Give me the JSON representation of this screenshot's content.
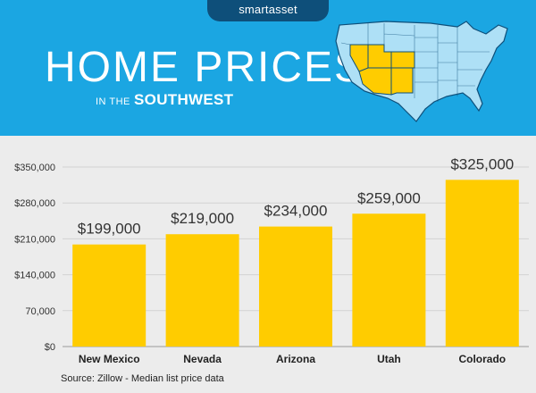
{
  "header": {
    "logo": "smartasset",
    "title": "HOME PRICES",
    "subtitle_prefix": "IN THE",
    "subtitle_emphasis": "SOUTHWEST"
  },
  "colors": {
    "header_bg": "#1ba6e2",
    "logo_tab": "#0e4f7a",
    "bar": "#ffcc00",
    "chart_bg": "#ececec",
    "map_fill": "#aee0f6",
    "map_highlight": "#ffcc00"
  },
  "map": {
    "highlighted_states": [
      "Nevada",
      "Utah",
      "Colorado",
      "Arizona",
      "New Mexico"
    ]
  },
  "chart_data": {
    "type": "bar",
    "categories": [
      "New Mexico",
      "Nevada",
      "Arizona",
      "Utah",
      "Colorado"
    ],
    "values": [
      199000,
      219000,
      234000,
      259000,
      325000
    ],
    "data_labels": [
      "$199,000",
      "$219,000",
      "$234,000",
      "$259,000",
      "$325,000"
    ],
    "yticks": [
      0,
      70000,
      140000,
      210000,
      280000,
      350000
    ],
    "ytick_labels": [
      "$0",
      "70,000",
      "$140,000",
      "$210,000",
      "$280,000",
      "$350,000"
    ],
    "ylim": [
      0,
      350000
    ],
    "title": "",
    "xlabel": "",
    "ylabel": "",
    "grid": true
  },
  "footer": {
    "source": "Source: Zillow - Median list price data"
  }
}
